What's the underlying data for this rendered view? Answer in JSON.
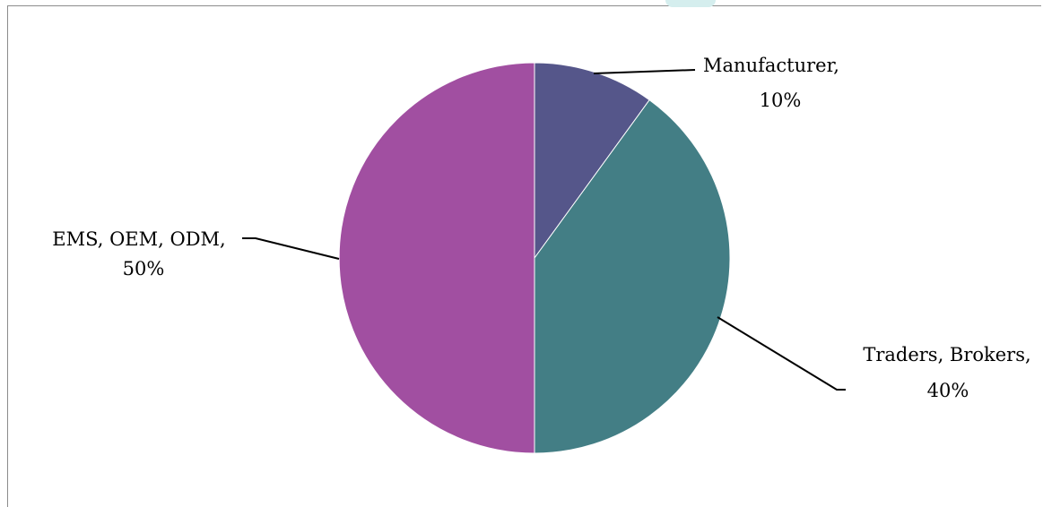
{
  "chart_data": {
    "type": "pie",
    "title": "",
    "slices": [
      {
        "label": "Manufacturer",
        "value": 10,
        "display": [
          "Manufacturer,",
          "10%"
        ],
        "color": "#55568a"
      },
      {
        "label": "Traders, Brokers",
        "value": 40,
        "display": [
          "Traders, Brokers,",
          "40%"
        ],
        "color": "#437e85"
      },
      {
        "label": "EMS, OEM, ODM",
        "value": 50,
        "display": [
          "EMS, OEM, ODM,",
          "50%"
        ],
        "color": "#a14fa1"
      }
    ],
    "start_angle_deg": 0,
    "direction": "clockwise",
    "slice_border_color": "#ffffff",
    "leader_line_color": "#000000"
  }
}
